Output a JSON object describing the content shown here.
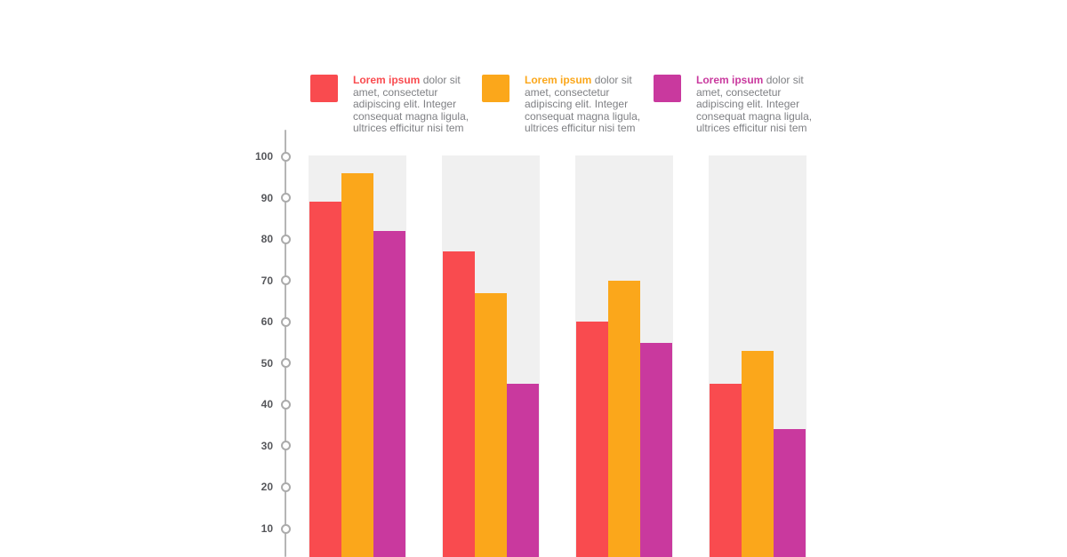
{
  "colors": {
    "series_red": "#F94B4F",
    "series_orange": "#FBA71B",
    "series_magenta": "#C9399E",
    "column_background": "#F0F0F0",
    "axis_gray": "#B5B5B5",
    "tick_label_gray": "#55565A",
    "legend_body_gray": "#7F8084",
    "canvas_background": "#FFFFFF"
  },
  "legend": {
    "items": [
      {
        "lead": "Lorem ipsum",
        "text": "dolor sit amet, consectetur adipiscing elit. Integer consequat magna ligula, ultrices efficitur nisi tem",
        "color": "#F94B4F"
      },
      {
        "lead": "Lorem ipsum",
        "text": "dolor sit amet, consectetur adipiscing elit. Integer consequat magna ligula, ultrices efficitur nisi tem",
        "color": "#FBA71B"
      },
      {
        "lead": "Lorem ipsum",
        "text": "dolor sit amet, consectetur adipiscing elit. Integer consequat magna ligula, ultrices efficitur nisi tem",
        "color": "#C9399E"
      }
    ]
  },
  "chart_data": {
    "type": "bar",
    "title": "",
    "xlabel": "",
    "ylabel": "",
    "ylim": [
      0,
      100
    ],
    "yticks": [
      100,
      90,
      80,
      70,
      60,
      50,
      40,
      30,
      20,
      10
    ],
    "grid": false,
    "legend_position": "top",
    "baseline_cut_off": true,
    "num_groups": 4,
    "series": [
      {
        "name": "Lorem ipsum",
        "color": "#F94B4F",
        "values": [
          89,
          77,
          60,
          45
        ]
      },
      {
        "name": "Lorem ipsum",
        "color": "#FBA71B",
        "values": [
          96,
          67,
          70,
          53
        ]
      },
      {
        "name": "Lorem ipsum",
        "color": "#C9399E",
        "values": [
          82,
          45,
          55,
          34
        ]
      }
    ]
  }
}
